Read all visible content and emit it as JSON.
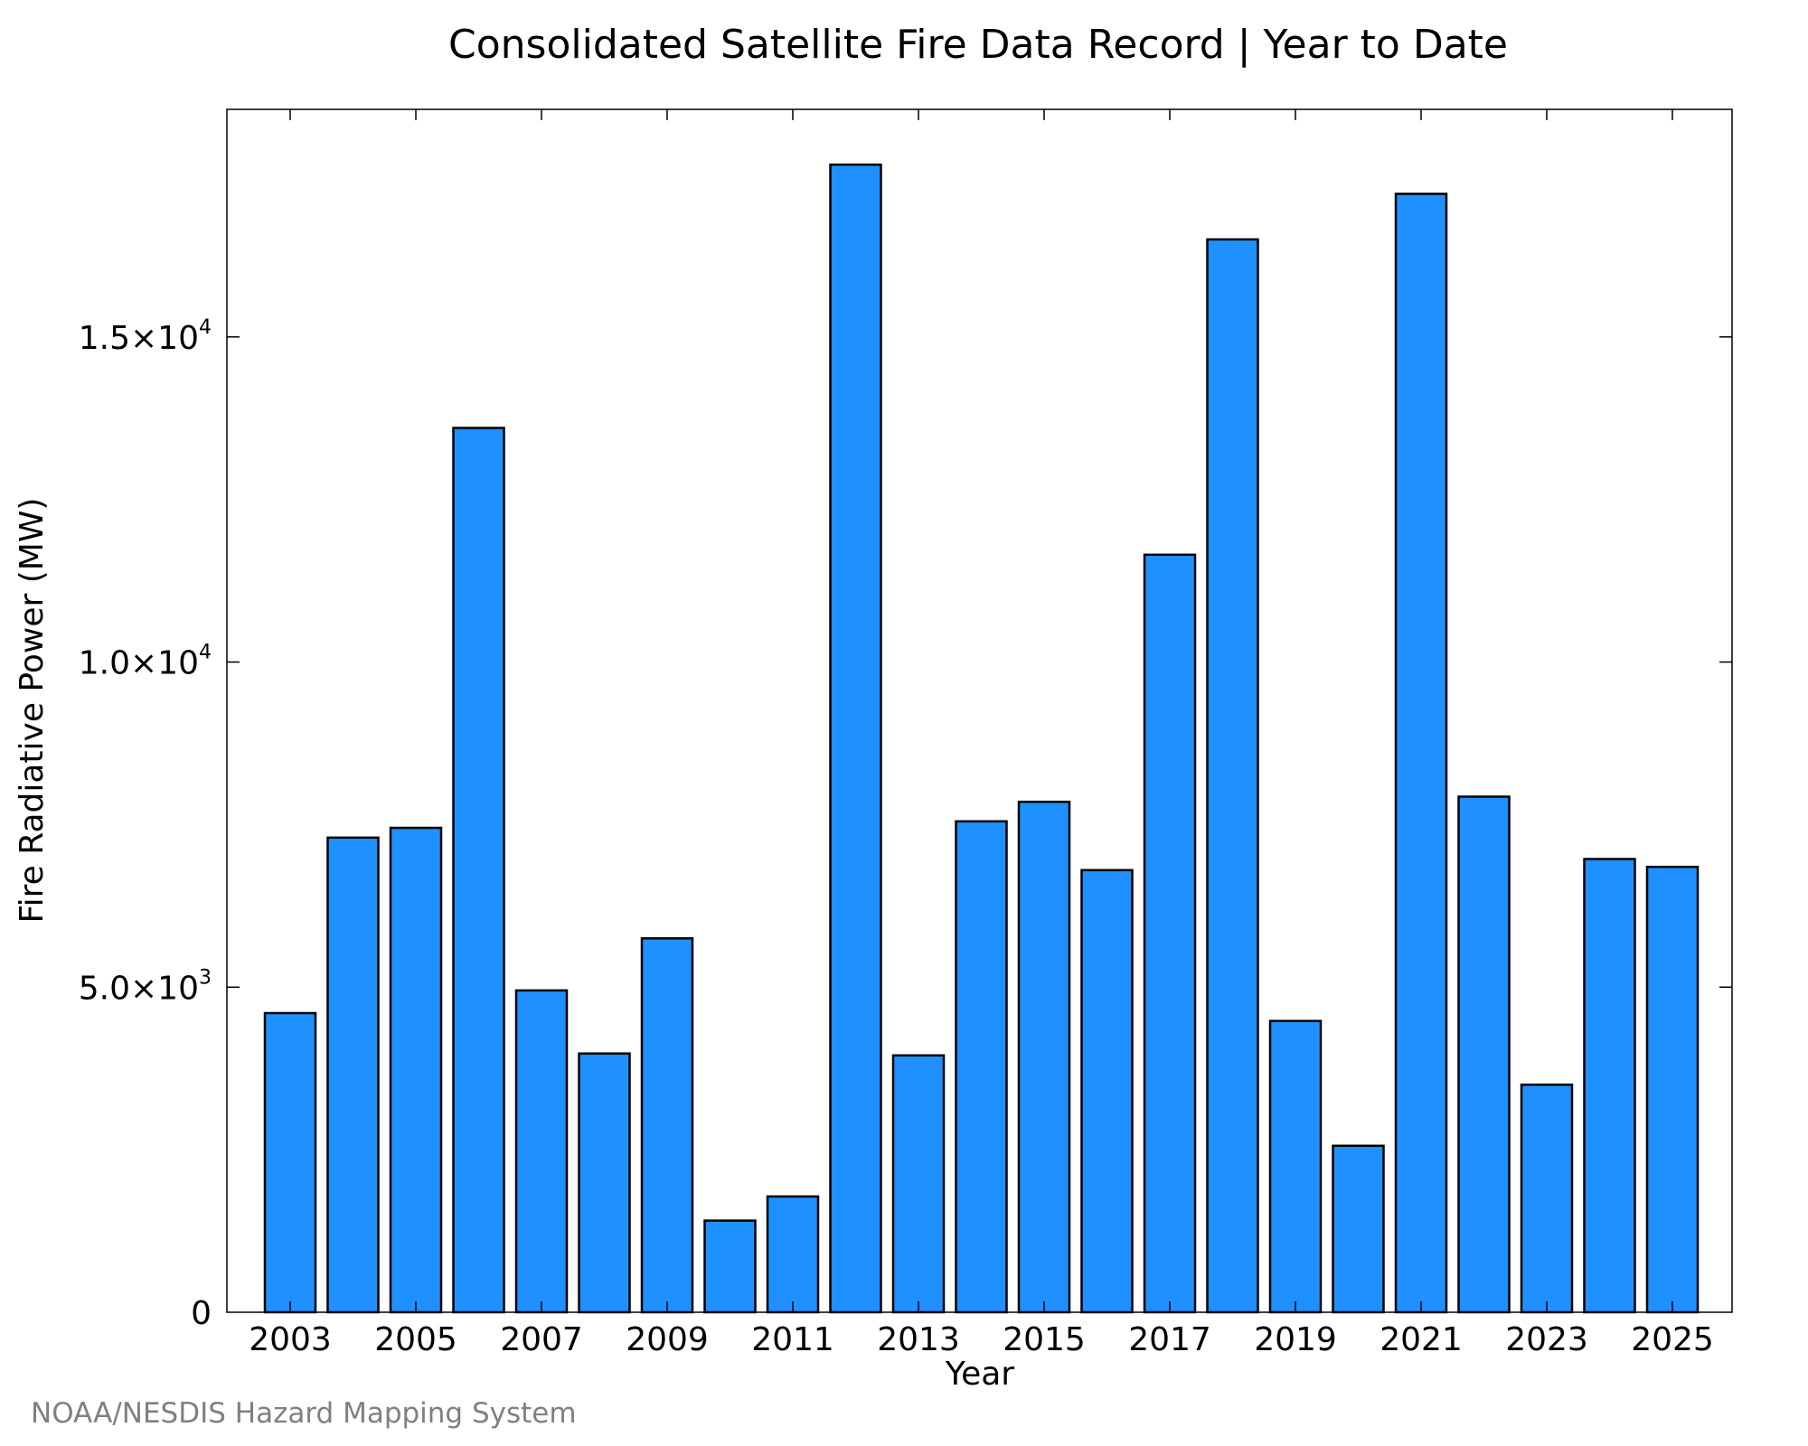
{
  "chart_data": {
    "type": "bar",
    "title": "Consolidated Satellite Fire Data Record | Year to Date",
    "xlabel": "Year",
    "ylabel": "Fire Radiative Power (MW)",
    "categories": [
      "2003",
      "2004",
      "2005",
      "2006",
      "2007",
      "2008",
      "2009",
      "2010",
      "2011",
      "2012",
      "2013",
      "2014",
      "2015",
      "2016",
      "2017",
      "2018",
      "2019",
      "2020",
      "2021",
      "2022",
      "2023",
      "2024",
      "2025"
    ],
    "x_tick_labels": [
      "2003",
      "2005",
      "2007",
      "2009",
      "2011",
      "2013",
      "2015",
      "2017",
      "2019",
      "2021",
      "2023",
      "2025"
    ],
    "values": [
      4600,
      7300,
      7450,
      13600,
      4950,
      3980,
      5750,
      1410,
      1780,
      17650,
      3950,
      7550,
      7850,
      6800,
      11650,
      16500,
      4480,
      2560,
      17200,
      7930,
      3500,
      6970,
      6850
    ],
    "ylim": [
      0,
      18500
    ],
    "y_ticks": [
      {
        "value": 0,
        "mantissa": "0",
        "exponent": ""
      },
      {
        "value": 5000,
        "mantissa": "5.0×10",
        "exponent": "3"
      },
      {
        "value": 10000,
        "mantissa": "1.0×10",
        "exponent": "4"
      },
      {
        "value": 15000,
        "mantissa": "1.5×10",
        "exponent": "4"
      }
    ],
    "bar_color": "#1e90ff",
    "edge_color": "#000000",
    "grid": false,
    "legend": "none"
  },
  "credit": "NOAA/NESDIS Hazard Mapping System"
}
